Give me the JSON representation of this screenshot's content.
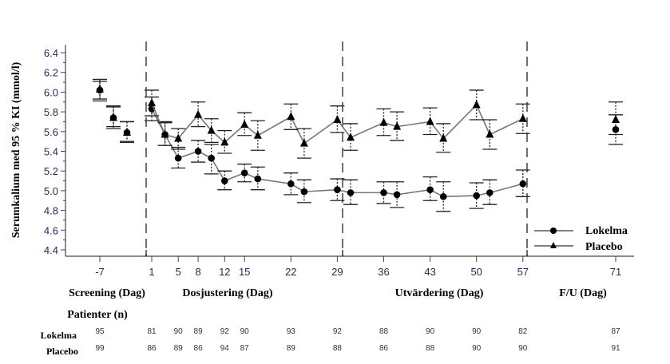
{
  "chart_data": {
    "type": "line",
    "ylabel": "Serumkalium med 95 % KI (mmol/l)",
    "ylim": [
      4.4,
      6.4
    ],
    "yticks": [
      "4.4",
      "4.6",
      "4.8",
      "5.0",
      "5.2",
      "5.4",
      "5.6",
      "5.8",
      "6.0",
      "6.2",
      "6.4"
    ],
    "xticks": [
      "-7",
      "1",
      "5",
      "8",
      "12",
      "15",
      "22",
      "29",
      "36",
      "43",
      "50",
      "57",
      "71"
    ],
    "periods": [
      {
        "label": "Screening (Dag)"
      },
      {
        "label": "Dosjustering (Dag)"
      },
      {
        "label": "Utvärdering (Dag)"
      },
      {
        "label": "F/U (Dag)"
      }
    ],
    "dividers_at_day": [
      0,
      29,
      57
    ],
    "legend": {
      "position": "bottom-right",
      "entries": [
        "Lokelma",
        "Placebo"
      ]
    },
    "series": [
      {
        "name": "Lokelma",
        "marker": "circle",
        "screening": [
          {
            "x": -7,
            "y": 6.02,
            "lo": 5.91,
            "hi": 6.11
          },
          {
            "x": -5,
            "y": 5.74,
            "lo": 5.63,
            "hi": 5.85
          },
          {
            "x": -3,
            "y": 5.59,
            "lo": 5.49,
            "hi": 5.7
          }
        ],
        "points": [
          {
            "x": 1,
            "y": 5.83,
            "lo": 5.71,
            "hi": 5.95
          },
          {
            "x": 3,
            "y": 5.57,
            "lo": 5.46,
            "hi": 5.7
          },
          {
            "x": 5,
            "y": 5.33,
            "lo": 5.23,
            "hi": 5.44
          },
          {
            "x": 8,
            "y": 5.4,
            "lo": 5.29,
            "hi": 5.51
          },
          {
            "x": 10,
            "y": 5.33,
            "lo": 5.17,
            "hi": 5.47
          },
          {
            "x": 12,
            "y": 5.1,
            "lo": 5.01,
            "hi": 5.2
          },
          {
            "x": 15,
            "y": 5.18,
            "lo": 5.09,
            "hi": 5.27
          },
          {
            "x": 17,
            "y": 5.12,
            "lo": 5.01,
            "hi": 5.24
          },
          {
            "x": 22,
            "y": 5.07,
            "lo": 4.96,
            "hi": 5.18
          },
          {
            "x": 24,
            "y": 4.99,
            "lo": 4.88,
            "hi": 5.11
          },
          {
            "x": 29,
            "y": 5.01,
            "lo": 4.9,
            "hi": 5.12
          },
          {
            "x": 31,
            "y": 4.98,
            "lo": 4.86,
            "hi": 5.11
          },
          {
            "x": 36,
            "y": 4.98,
            "lo": 4.87,
            "hi": 5.09
          },
          {
            "x": 38,
            "y": 4.96,
            "lo": 4.83,
            "hi": 5.09
          },
          {
            "x": 43,
            "y": 5.01,
            "lo": 4.9,
            "hi": 5.14
          },
          {
            "x": 45,
            "y": 4.94,
            "lo": 4.79,
            "hi": 5.09
          },
          {
            "x": 50,
            "y": 4.95,
            "lo": 4.82,
            "hi": 5.08
          },
          {
            "x": 52,
            "y": 4.98,
            "lo": 4.86,
            "hi": 5.11
          },
          {
            "x": 57,
            "y": 5.07,
            "lo": 4.94,
            "hi": 5.21
          }
        ],
        "followup": [
          {
            "x": 71,
            "y": 5.62,
            "lo": 5.47,
            "hi": 5.77
          }
        ]
      },
      {
        "name": "Placebo",
        "marker": "triangle",
        "screening": [
          {
            "x": -7,
            "y": 6.03,
            "lo": 5.93,
            "hi": 6.13
          },
          {
            "x": -5,
            "y": 5.74,
            "lo": 5.65,
            "hi": 5.86
          },
          {
            "x": -3,
            "y": 5.59,
            "lo": 5.5,
            "hi": 5.7
          }
        ],
        "points": [
          {
            "x": 1,
            "y": 5.89,
            "lo": 5.76,
            "hi": 6.02
          },
          {
            "x": 3,
            "y": 5.57,
            "lo": 5.46,
            "hi": 5.69
          },
          {
            "x": 5,
            "y": 5.53,
            "lo": 5.42,
            "hi": 5.63
          },
          {
            "x": 8,
            "y": 5.77,
            "lo": 5.65,
            "hi": 5.9
          },
          {
            "x": 10,
            "y": 5.61,
            "lo": 5.49,
            "hi": 5.73
          },
          {
            "x": 12,
            "y": 5.49,
            "lo": 5.38,
            "hi": 5.61
          },
          {
            "x": 15,
            "y": 5.67,
            "lo": 5.56,
            "hi": 5.79
          },
          {
            "x": 17,
            "y": 5.56,
            "lo": 5.41,
            "hi": 5.71
          },
          {
            "x": 22,
            "y": 5.75,
            "lo": 5.62,
            "hi": 5.88
          },
          {
            "x": 24,
            "y": 5.48,
            "lo": 5.33,
            "hi": 5.63
          },
          {
            "x": 29,
            "y": 5.72,
            "lo": 5.59,
            "hi": 5.86
          },
          {
            "x": 31,
            "y": 5.54,
            "lo": 5.41,
            "hi": 5.68
          },
          {
            "x": 36,
            "y": 5.69,
            "lo": 5.56,
            "hi": 5.83
          },
          {
            "x": 38,
            "y": 5.65,
            "lo": 5.51,
            "hi": 5.8
          },
          {
            "x": 43,
            "y": 5.7,
            "lo": 5.57,
            "hi": 5.84
          },
          {
            "x": 45,
            "y": 5.53,
            "lo": 5.39,
            "hi": 5.68
          },
          {
            "x": 50,
            "y": 5.87,
            "lo": 5.72,
            "hi": 6.02
          },
          {
            "x": 52,
            "y": 5.57,
            "lo": 5.42,
            "hi": 5.72
          },
          {
            "x": 57,
            "y": 5.73,
            "lo": 5.58,
            "hi": 5.88
          }
        ],
        "followup": [
          {
            "x": 71,
            "y": 5.72,
            "lo": 5.57,
            "hi": 5.9
          }
        ]
      }
    ],
    "patients": {
      "title": "Patienter (n)",
      "days": [
        "-7",
        "1",
        "5",
        "8",
        "12",
        "15",
        "22",
        "29",
        "36",
        "43",
        "50",
        "57",
        "71"
      ],
      "rows": [
        {
          "label": "Lokelma",
          "values": [
            "95",
            "81",
            "90",
            "89",
            "92",
            "90",
            "93",
            "92",
            "88",
            "90",
            "90",
            "82",
            "87"
          ]
        },
        {
          "label": "Placebo",
          "values": [
            "99",
            "86",
            "89",
            "86",
            "94",
            "87",
            "89",
            "88",
            "86",
            "88",
            "90",
            "90",
            "91"
          ]
        }
      ]
    }
  }
}
